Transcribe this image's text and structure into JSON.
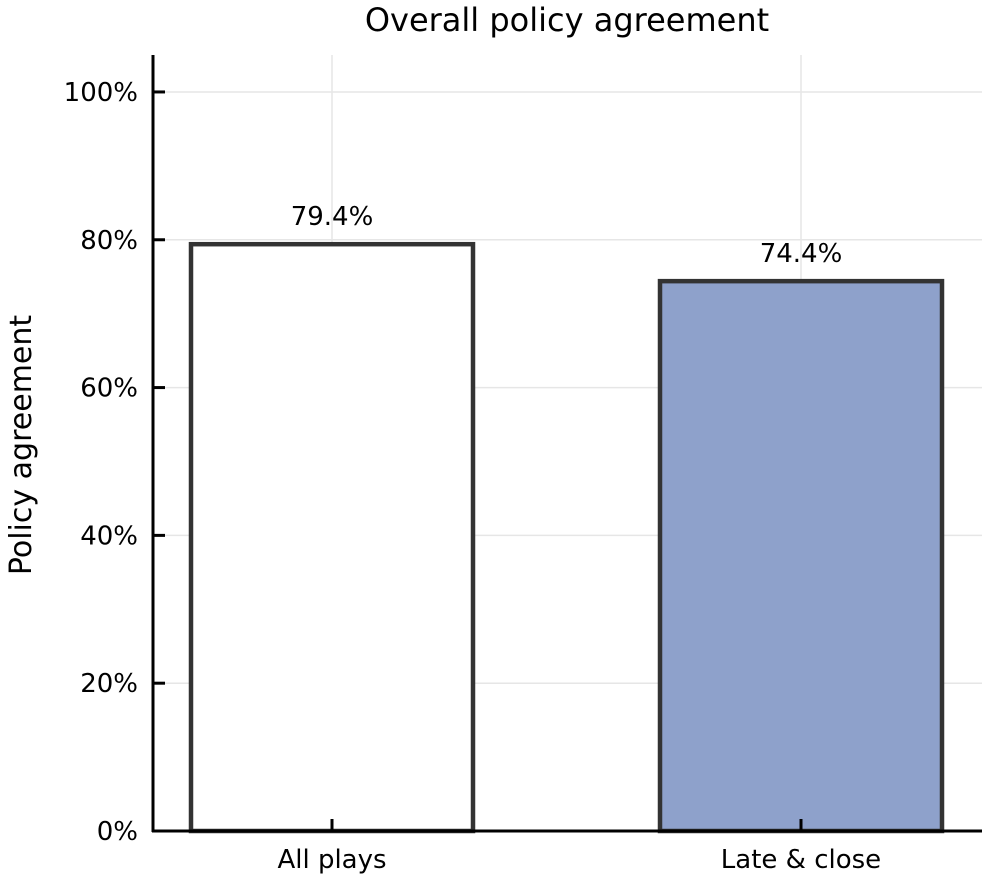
{
  "chart_data": {
    "type": "bar",
    "title": "Overall policy agreement",
    "xlabel": "",
    "ylabel": "Policy agreement",
    "categories": [
      "All plays",
      "Late & close"
    ],
    "values": [
      79.4,
      74.4
    ],
    "data_labels": [
      "79.4%",
      "74.4%"
    ],
    "bar_colors": [
      "#ffffff",
      "#8ea1cb"
    ],
    "bar_edge_color": "#333333",
    "ylim": [
      0,
      105
    ],
    "yticks": [
      0,
      20,
      40,
      60,
      80,
      100
    ],
    "ytick_labels": [
      "0%",
      "20%",
      "40%",
      "60%",
      "80%",
      "100%"
    ],
    "grid": true,
    "grid_color": "#e6e6e6",
    "axis_color": "#000000"
  }
}
